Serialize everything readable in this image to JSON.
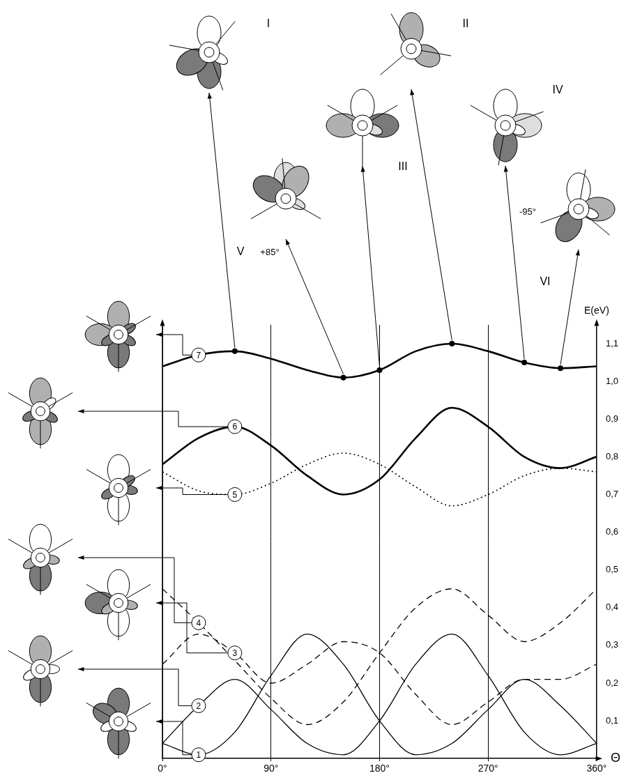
{
  "chart_data": {
    "type": "line",
    "x_label": "Θ",
    "y_label": "E(eV)",
    "x": [
      0,
      30,
      60,
      90,
      120,
      150,
      180,
      210,
      240,
      270,
      300,
      330,
      360
    ],
    "xlim": [
      0,
      360
    ],
    "xticks": [
      {
        "value": 0,
        "label": "0°"
      },
      {
        "value": 90,
        "label": "90°"
      },
      {
        "value": 180,
        "label": "180°"
      },
      {
        "value": 270,
        "label": "270°"
      },
      {
        "value": 360,
        "label": "360°"
      }
    ],
    "ylim": [
      0,
      1.15
    ],
    "yticks": [
      {
        "value": 0.1,
        "label": "0,1"
      },
      {
        "value": 0.2,
        "label": "0,2"
      },
      {
        "value": 0.3,
        "label": "0,3"
      },
      {
        "value": 0.4,
        "label": "0,4"
      },
      {
        "value": 0.5,
        "label": "0,5"
      },
      {
        "value": 0.6,
        "label": "0,6"
      },
      {
        "value": 0.7,
        "label": "0,7"
      },
      {
        "value": 0.8,
        "label": "0,8"
      },
      {
        "value": 0.9,
        "label": "0,9"
      },
      {
        "value": 1.0,
        "label": "1,0"
      },
      {
        "value": 1.1,
        "label": "1,1"
      }
    ],
    "grid": "x",
    "series": [
      {
        "name": "1",
        "color": "#000000",
        "line_style": "solid",
        "values": [
          0.04,
          0.01,
          0.07,
          0.22,
          0.33,
          0.25,
          0.1,
          0.01,
          0.04,
          0.13,
          0.21,
          0.14,
          0.04
        ]
      },
      {
        "name": "2",
        "color": "#000000",
        "line_style": "solid",
        "values": [
          0.04,
          0.14,
          0.21,
          0.13,
          0.04,
          0.01,
          0.1,
          0.25,
          0.33,
          0.22,
          0.07,
          0.01,
          0.04
        ]
      },
      {
        "name": "3",
        "color": "#000000",
        "line_style": "dashed",
        "values": [
          0.25,
          0.33,
          0.28,
          0.2,
          0.25,
          0.31,
          0.28,
          0.17,
          0.09,
          0.15,
          0.21,
          0.21,
          0.25
        ]
      },
      {
        "name": "4",
        "color": "#000000",
        "line_style": "dashed",
        "values": [
          0.45,
          0.36,
          0.26,
          0.16,
          0.09,
          0.15,
          0.28,
          0.4,
          0.45,
          0.38,
          0.31,
          0.36,
          0.45
        ]
      },
      {
        "name": "5",
        "color": "#000000",
        "line_style": "dotted",
        "values": [
          0.76,
          0.71,
          0.7,
          0.73,
          0.78,
          0.81,
          0.78,
          0.72,
          0.67,
          0.7,
          0.75,
          0.77,
          0.76
        ]
      },
      {
        "name": "6",
        "color": "#000000",
        "line_style": "bold",
        "values": [
          0.78,
          0.85,
          0.88,
          0.83,
          0.75,
          0.7,
          0.74,
          0.85,
          0.93,
          0.88,
          0.8,
          0.77,
          0.8
        ]
      },
      {
        "name": "7",
        "color": "#000000",
        "line_style": "bold",
        "values": [
          1.04,
          1.07,
          1.08,
          1.06,
          1.03,
          1.01,
          1.03,
          1.08,
          1.1,
          1.08,
          1.05,
          1.035,
          1.04
        ]
      }
    ],
    "points": [
      {
        "label": "I",
        "x": 60,
        "y": 1.08
      },
      {
        "label": "II",
        "x": 240,
        "y": 1.1
      },
      {
        "label": "III",
        "x": 180,
        "y": 1.03
      },
      {
        "label": "IV",
        "x": 300,
        "y": 1.05
      },
      {
        "label": "V",
        "x": 150,
        "y": 1.01,
        "note": "+85°"
      },
      {
        "label": "VI",
        "x": 330,
        "y": 1.035,
        "note": "-95°"
      }
    ]
  }
}
